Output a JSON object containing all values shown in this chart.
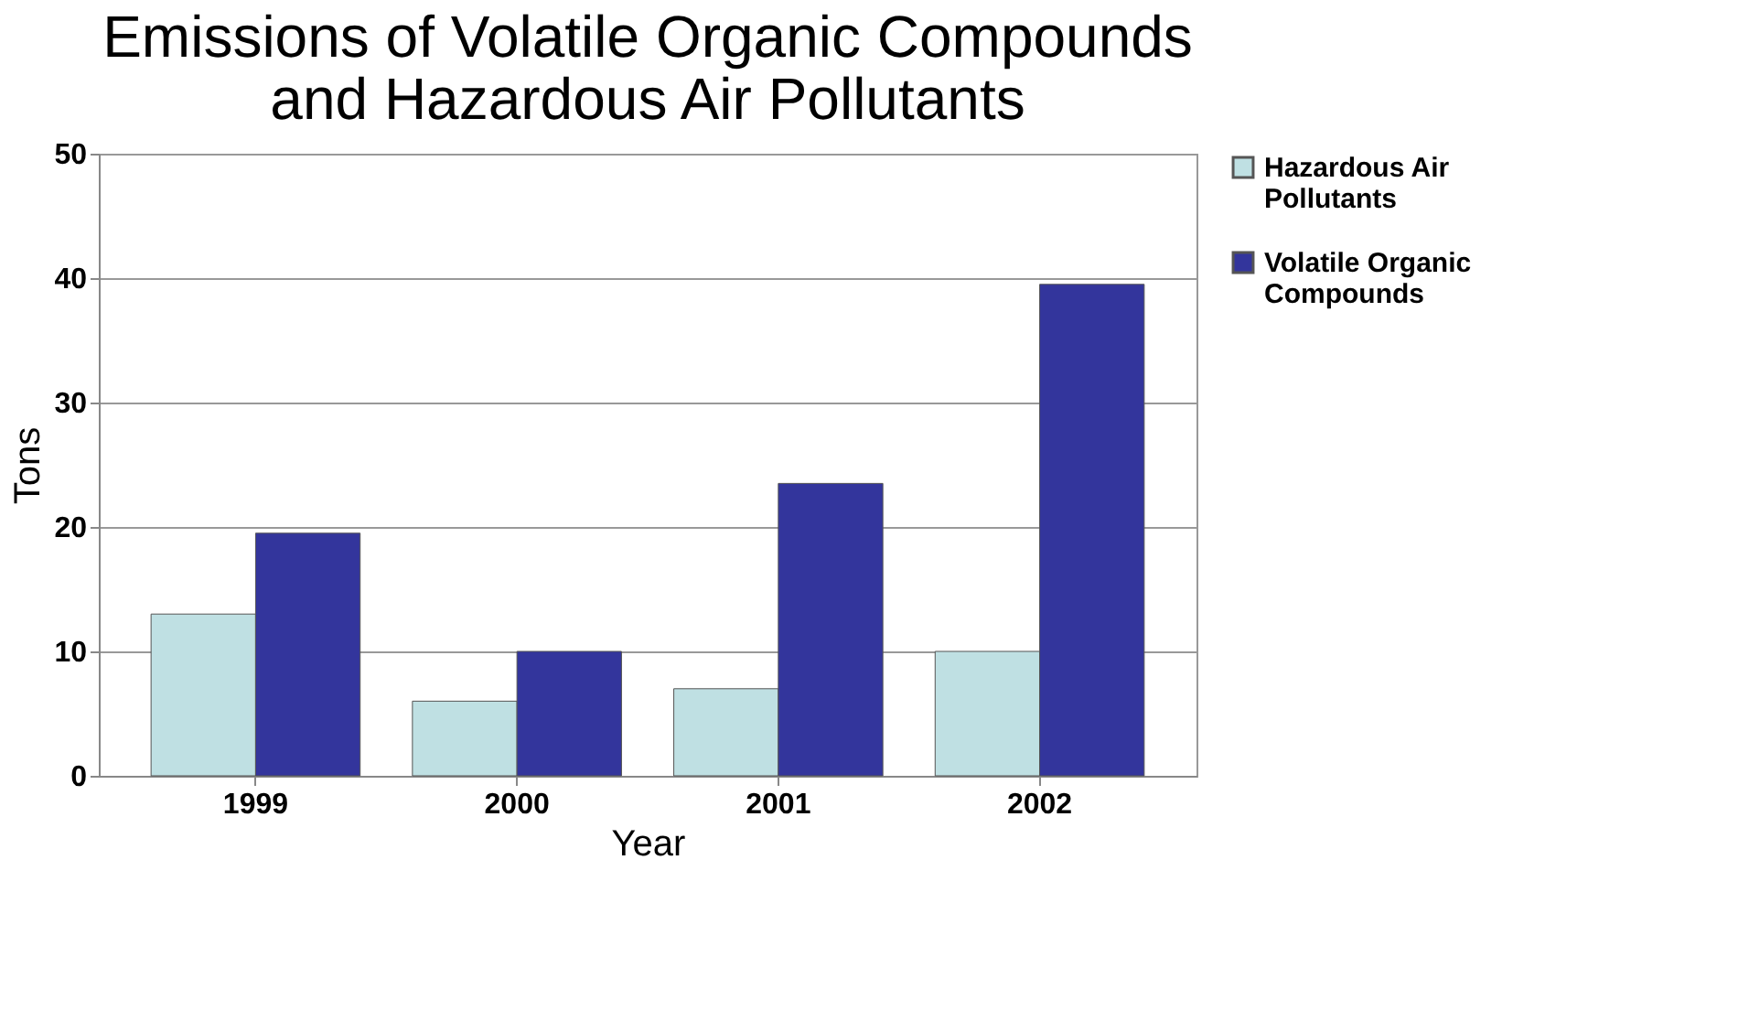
{
  "chart_data": {
    "type": "bar",
    "title": "Emissions of Volatile Organic Compounds and Hazardous Air Pollutants",
    "xlabel": "Year",
    "ylabel": "Tons",
    "categories": [
      "1999",
      "2000",
      "2001",
      "2002"
    ],
    "series": [
      {
        "name": "Hazardous Air Pollutants",
        "color": "#bfe0e3",
        "values": [
          13,
          6,
          7,
          10
        ]
      },
      {
        "name": "Volatile Organic Compounds",
        "color": "#33359c",
        "values": [
          19.5,
          10,
          23.5,
          39.5
        ]
      }
    ],
    "ylim": [
      0,
      50
    ],
    "yticks": [
      0,
      10,
      20,
      30,
      40,
      50
    ],
    "grid": "y",
    "legend": "right"
  }
}
